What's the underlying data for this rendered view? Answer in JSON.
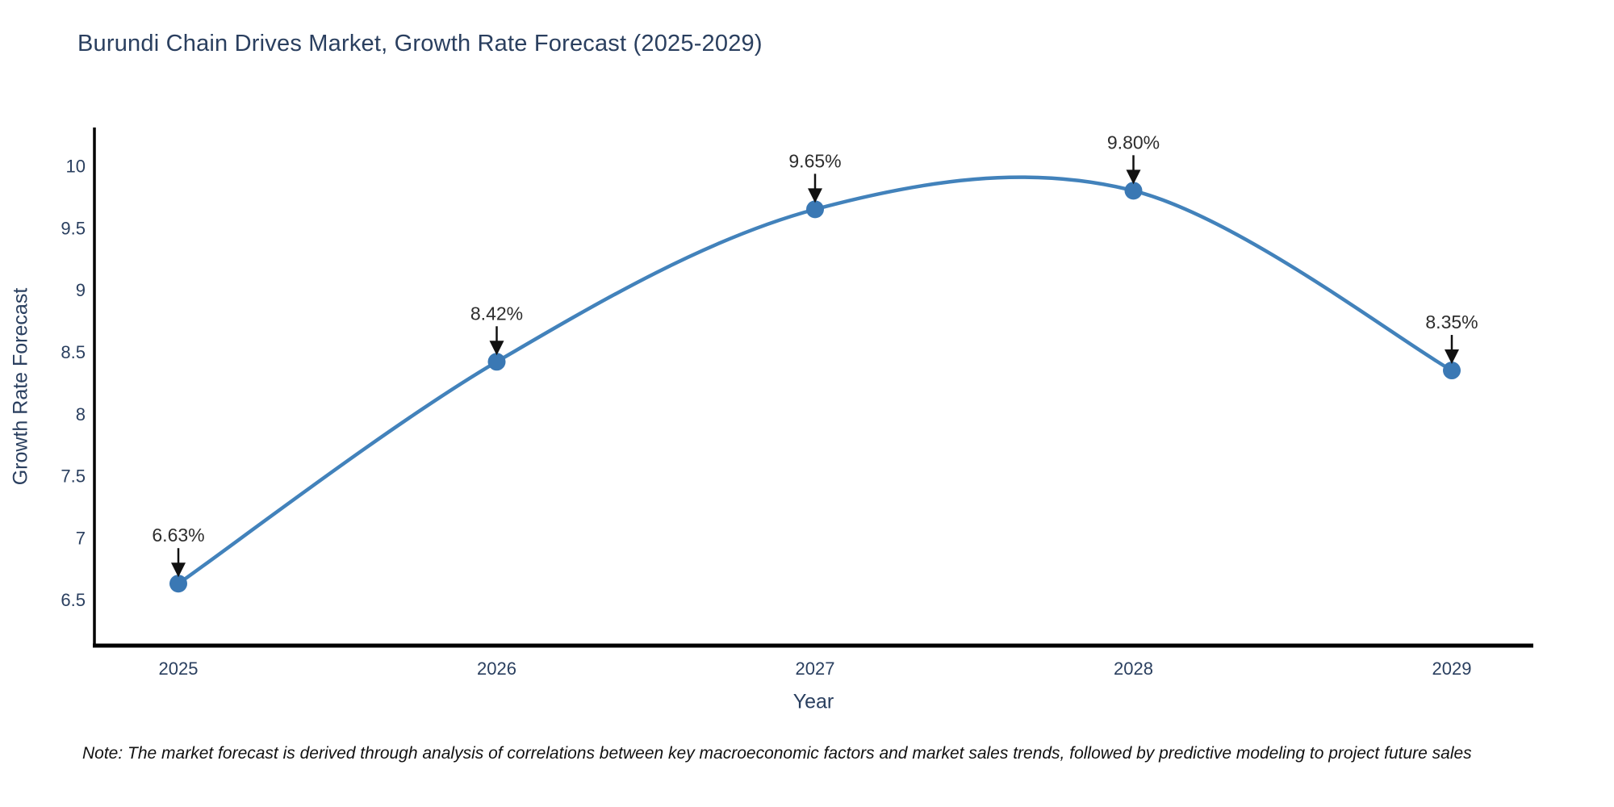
{
  "chart_data": {
    "type": "line",
    "title": "Burundi Chain Drives Market, Growth Rate Forecast (2025-2029)",
    "xlabel": "Year",
    "ylabel": "Growth Rate Forecast",
    "categories": [
      "2025",
      "2026",
      "2027",
      "2028",
      "2029"
    ],
    "values": [
      6.63,
      8.42,
      9.65,
      9.8,
      8.35
    ],
    "point_labels": [
      "6.63%",
      "8.42%",
      "9.65%",
      "9.80%",
      "8.35%"
    ],
    "yticks": [
      6.5,
      7,
      7.5,
      8,
      8.5,
      9,
      9.5,
      10
    ],
    "ytick_labels": [
      "6.5",
      "7",
      "7.5",
      "8",
      "8.5",
      "9",
      "9.5",
      "10"
    ],
    "ylim": [
      6.13,
      10.31
    ],
    "line_shape": "spline",
    "grid": false,
    "legend": "none",
    "colors": {
      "line": "#4282bb",
      "marker": "#3a78b4",
      "axis": "#000000",
      "title_text": "#2a3f5f",
      "tick_text": "#2a3f5f",
      "annotation_text": "#2d2d2d",
      "arrow": "#111111"
    }
  },
  "note": {
    "text": "Note: The market forecast is derived through analysis of correlations between key macroeconomic factors and market sales trends, followed by predictive modeling to project future sales"
  }
}
